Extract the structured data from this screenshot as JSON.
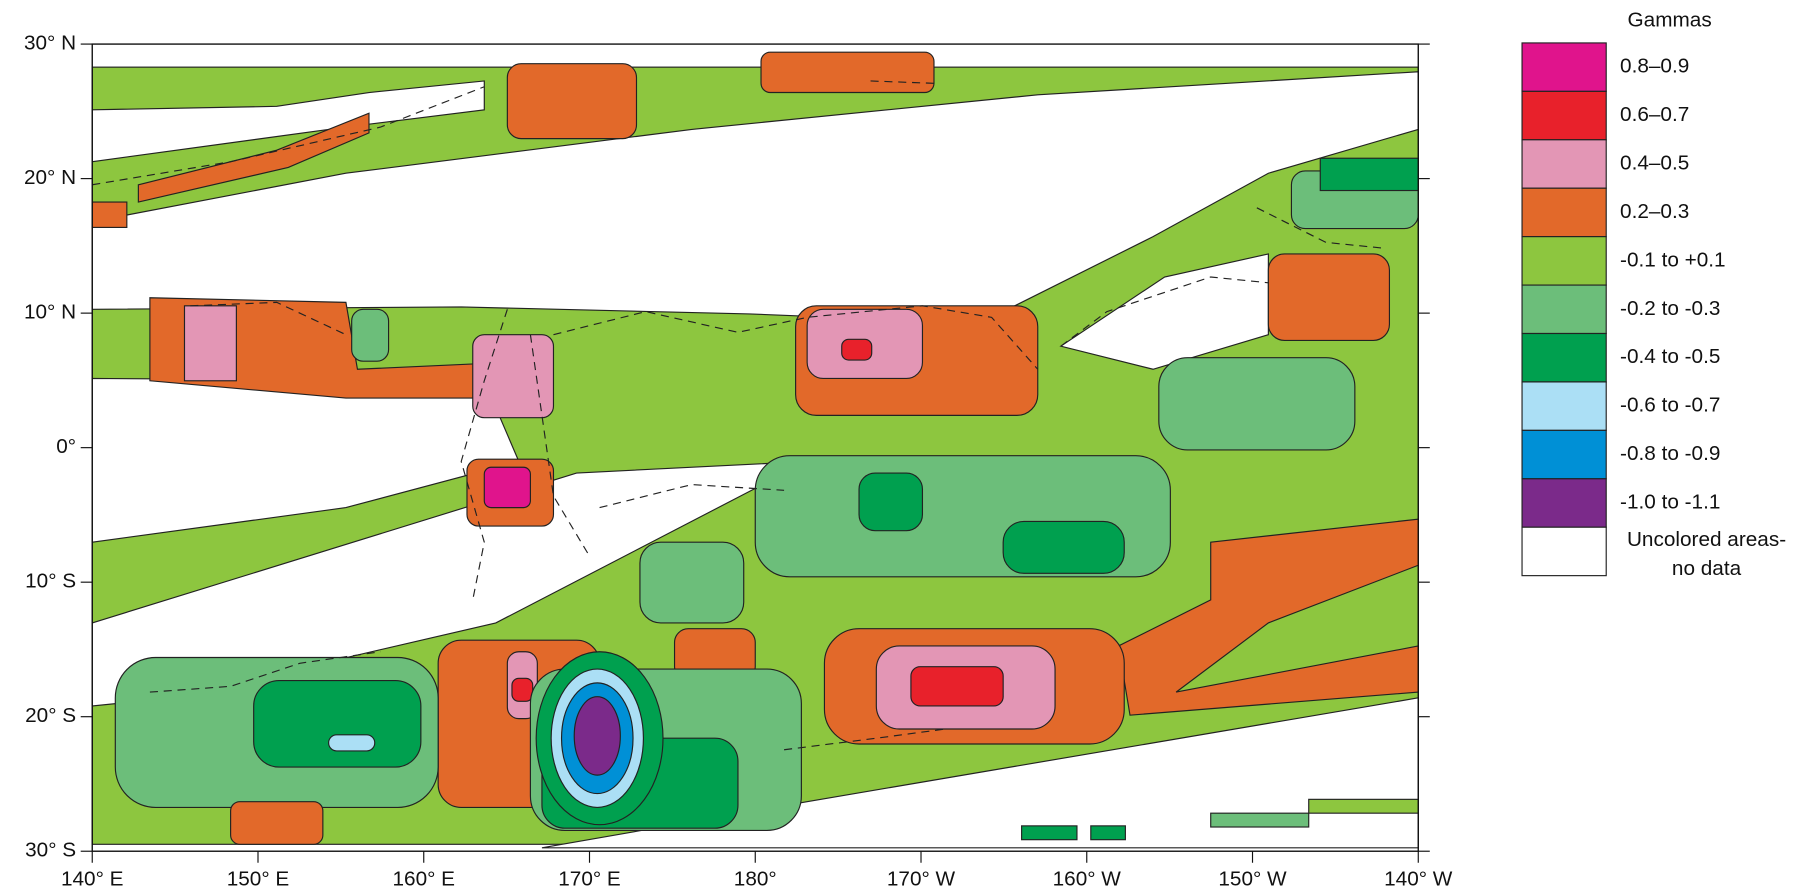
{
  "map": {
    "lat_ticks": [
      {
        "value": 30,
        "label": "30° N"
      },
      {
        "value": 20,
        "label": "20° N"
      },
      {
        "value": 10,
        "label": "10° N"
      },
      {
        "value": 0,
        "label": "0°"
      },
      {
        "value": -10,
        "label": "10° S"
      },
      {
        "value": -20,
        "label": "20° S"
      },
      {
        "value": -30,
        "label": "30° S"
      }
    ],
    "lon_ticks": [
      {
        "value": 140,
        "label": "140° E"
      },
      {
        "value": 150,
        "label": "150° E"
      },
      {
        "value": 160,
        "label": "160° E"
      },
      {
        "value": 170,
        "label": "170° E"
      },
      {
        "value": 180,
        "label": "180°"
      },
      {
        "value": 190,
        "label": "170° W"
      },
      {
        "value": 200,
        "label": "160° W"
      },
      {
        "value": 210,
        "label": "150° W"
      },
      {
        "value": 220,
        "label": "140° W"
      }
    ],
    "legend": {
      "title": "Gammas",
      "items": [
        {
          "label": "0.8–0.9",
          "color": "#e0148c"
        },
        {
          "label": "0.6–0.7",
          "color": "#e8212b"
        },
        {
          "label": "0.4–0.5",
          "color": "#e396b5"
        },
        {
          "label": "0.2–0.3",
          "color": "#e2692a"
        },
        {
          "label": "-0.1 to +0.1",
          "color": "#8dc63f"
        },
        {
          "label": "-0.2 to -0.3",
          "color": "#6cbe7a"
        },
        {
          "label": "-0.4 to -0.5",
          "color": "#00a04f"
        },
        {
          "label": "-0.6 to -0.7",
          "color": "#abdff5"
        },
        {
          "label": "-0.8 to -0.9",
          "color": "#0090d6"
        },
        {
          "label": "-1.0 to -1.1",
          "color": "#7b2a8a"
        },
        {
          "label": "Uncolored areas-\nno data",
          "color": "#ffffff"
        }
      ]
    }
  }
}
